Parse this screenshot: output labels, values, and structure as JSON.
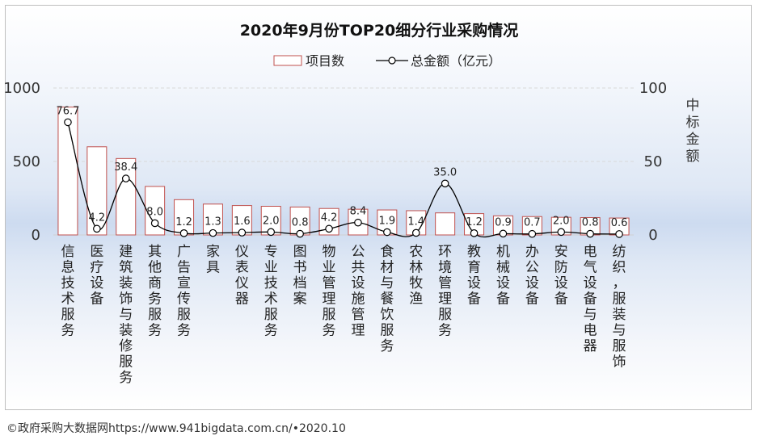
{
  "chart_data": {
    "type": "bar",
    "title": "2020年9月份TOP20细分行业采购情况",
    "legend": {
      "bar_label": "项目数",
      "line_label": "总金额（亿元）",
      "placement": "top-center"
    },
    "ylabel_right": "中标金额",
    "ylabel_left": "",
    "xlabel": "",
    "ylim_left": [
      0,
      1000
    ],
    "yticks_left": [
      "0",
      "500",
      "1000"
    ],
    "ylim_right": [
      0,
      100
    ],
    "yticks_right": [
      "0",
      "50",
      "100"
    ],
    "grid": true,
    "categories": [
      "信息技术服务",
      "医疗设备",
      "建筑装饰与装修服务",
      "其他商务服务",
      "广告宣传服务",
      "家具",
      "仪表仪器",
      "专业技术服务",
      "图书档案",
      "物业管理服务",
      "公共设施管理",
      "食材与餐饮服务",
      "农林牧渔",
      "环境管理服务",
      "教育设备",
      "机械设备",
      "办公设备",
      "安防设备",
      "电气设备与电器",
      "纺织，服装与服饰"
    ],
    "series": [
      {
        "name": "项目数",
        "kind": "bar",
        "axis": "left",
        "values": [
          870,
          600,
          520,
          330,
          240,
          210,
          200,
          195,
          190,
          180,
          175,
          170,
          165,
          150,
          145,
          130,
          125,
          120,
          118,
          115
        ]
      },
      {
        "name": "总金额（亿元）",
        "kind": "line",
        "axis": "right",
        "values": [
          76.7,
          4.2,
          38.4,
          8.0,
          1.2,
          1.3,
          1.6,
          2.0,
          0.8,
          4.2,
          8.4,
          1.9,
          1.4,
          35.0,
          1.2,
          0.9,
          0.7,
          2.0,
          0.8,
          0.6
        ],
        "labels": [
          "76.7",
          "4.2",
          "38.4",
          "8.0",
          "1.2",
          "1.3",
          "1.6",
          "2.0",
          "0.8",
          "4.2",
          "8.4",
          "1.9",
          "1.4",
          "35.0",
          "1.2",
          "0.9",
          "0.7",
          "2.0",
          "0.8",
          "0.6"
        ]
      }
    ]
  },
  "footer": {
    "source": "©政府采购大数据网https://www.941bigdata.com.cn/•2020.10"
  },
  "colors": {
    "bar_stroke": "#c0504d",
    "bar_fill": "#ffffff",
    "line": "#000000",
    "marker_fill": "#ffffff",
    "grid": "#d9d9d9"
  }
}
